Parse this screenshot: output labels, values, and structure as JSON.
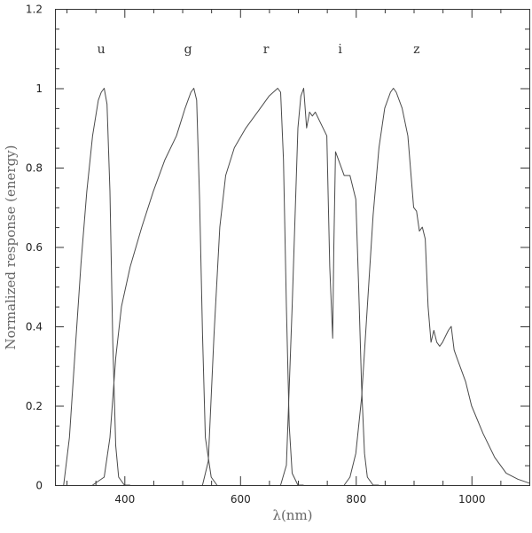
{
  "chart_data": {
    "type": "line",
    "title": "",
    "xlabel": "λ(nm)",
    "ylabel": "Normalized response (energy)",
    "xlim": [
      280,
      1100
    ],
    "ylim": [
      0,
      1.2
    ],
    "x_ticks": [
      400,
      600,
      800,
      1000
    ],
    "x_tick_labels": [
      "400",
      "600",
      "800",
      "1000"
    ],
    "y_ticks": [
      0,
      0.2,
      0.4,
      0.6,
      0.8,
      1,
      1.2
    ],
    "y_tick_labels": [
      "0",
      "0.2",
      "0.4",
      "0.6",
      "0.8",
      "1",
      "1.2"
    ],
    "grid": false,
    "legend": "none",
    "band_labels": [
      {
        "text": "u",
        "x": 360,
        "y": 1.1
      },
      {
        "text": "g",
        "x": 510,
        "y": 1.1
      },
      {
        "text": "r",
        "x": 645,
        "y": 1.1
      },
      {
        "text": "i",
        "x": 773,
        "y": 1.1
      },
      {
        "text": "z",
        "x": 905,
        "y": 1.1
      }
    ],
    "series": [
      {
        "x": [
          295,
          305,
          315,
          325,
          335,
          345,
          355,
          360,
          365,
          370,
          375,
          380,
          385,
          390,
          400,
          410
        ],
        "y": [
          0.0,
          0.12,
          0.34,
          0.56,
          0.74,
          0.88,
          0.97,
          0.99,
          1.0,
          0.96,
          0.74,
          0.36,
          0.1,
          0.02,
          0.0,
          0.0
        ]
      },
      {
        "x": [
          345,
          365,
          375,
          385,
          395,
          410,
          430,
          450,
          470,
          490,
          505,
          515,
          520,
          525,
          530,
          535,
          540,
          550,
          560
        ],
        "y": [
          0.0,
          0.02,
          0.12,
          0.32,
          0.45,
          0.55,
          0.65,
          0.74,
          0.82,
          0.88,
          0.95,
          0.99,
          1.0,
          0.97,
          0.72,
          0.38,
          0.12,
          0.02,
          0.0
        ]
      },
      {
        "x": [
          535,
          545,
          555,
          565,
          575,
          590,
          610,
          630,
          650,
          665,
          670,
          675,
          680,
          685,
          690,
          700,
          710
        ],
        "y": [
          0.0,
          0.06,
          0.38,
          0.65,
          0.78,
          0.85,
          0.9,
          0.94,
          0.98,
          1.0,
          0.99,
          0.82,
          0.45,
          0.15,
          0.03,
          0.0,
          0.0
        ]
      },
      {
        "x": [
          670,
          680,
          690,
          700,
          705,
          710,
          715,
          720,
          725,
          730,
          740,
          750,
          755,
          760,
          762,
          765,
          770,
          780,
          790,
          800,
          805,
          810,
          815,
          820,
          830,
          840
        ],
        "y": [
          0.0,
          0.05,
          0.45,
          0.9,
          0.98,
          1.0,
          0.9,
          0.94,
          0.93,
          0.94,
          0.91,
          0.88,
          0.55,
          0.37,
          0.6,
          0.84,
          0.82,
          0.78,
          0.78,
          0.72,
          0.5,
          0.25,
          0.08,
          0.02,
          0.0,
          0.0
        ]
      },
      {
        "x": [
          780,
          790,
          800,
          810,
          820,
          830,
          840,
          850,
          860,
          865,
          870,
          880,
          890,
          900,
          905,
          910,
          915,
          920,
          925,
          930,
          935,
          940,
          945,
          950,
          960,
          965,
          970,
          975,
          980,
          990,
          1000,
          1020,
          1040,
          1060,
          1080,
          1100
        ],
        "y": [
          0.0,
          0.02,
          0.08,
          0.22,
          0.45,
          0.68,
          0.85,
          0.95,
          0.99,
          1.0,
          0.99,
          0.95,
          0.88,
          0.7,
          0.69,
          0.64,
          0.65,
          0.62,
          0.45,
          0.36,
          0.39,
          0.36,
          0.35,
          0.36,
          0.39,
          0.4,
          0.34,
          0.32,
          0.3,
          0.26,
          0.2,
          0.13,
          0.07,
          0.03,
          0.015,
          0.005
        ]
      }
    ]
  }
}
